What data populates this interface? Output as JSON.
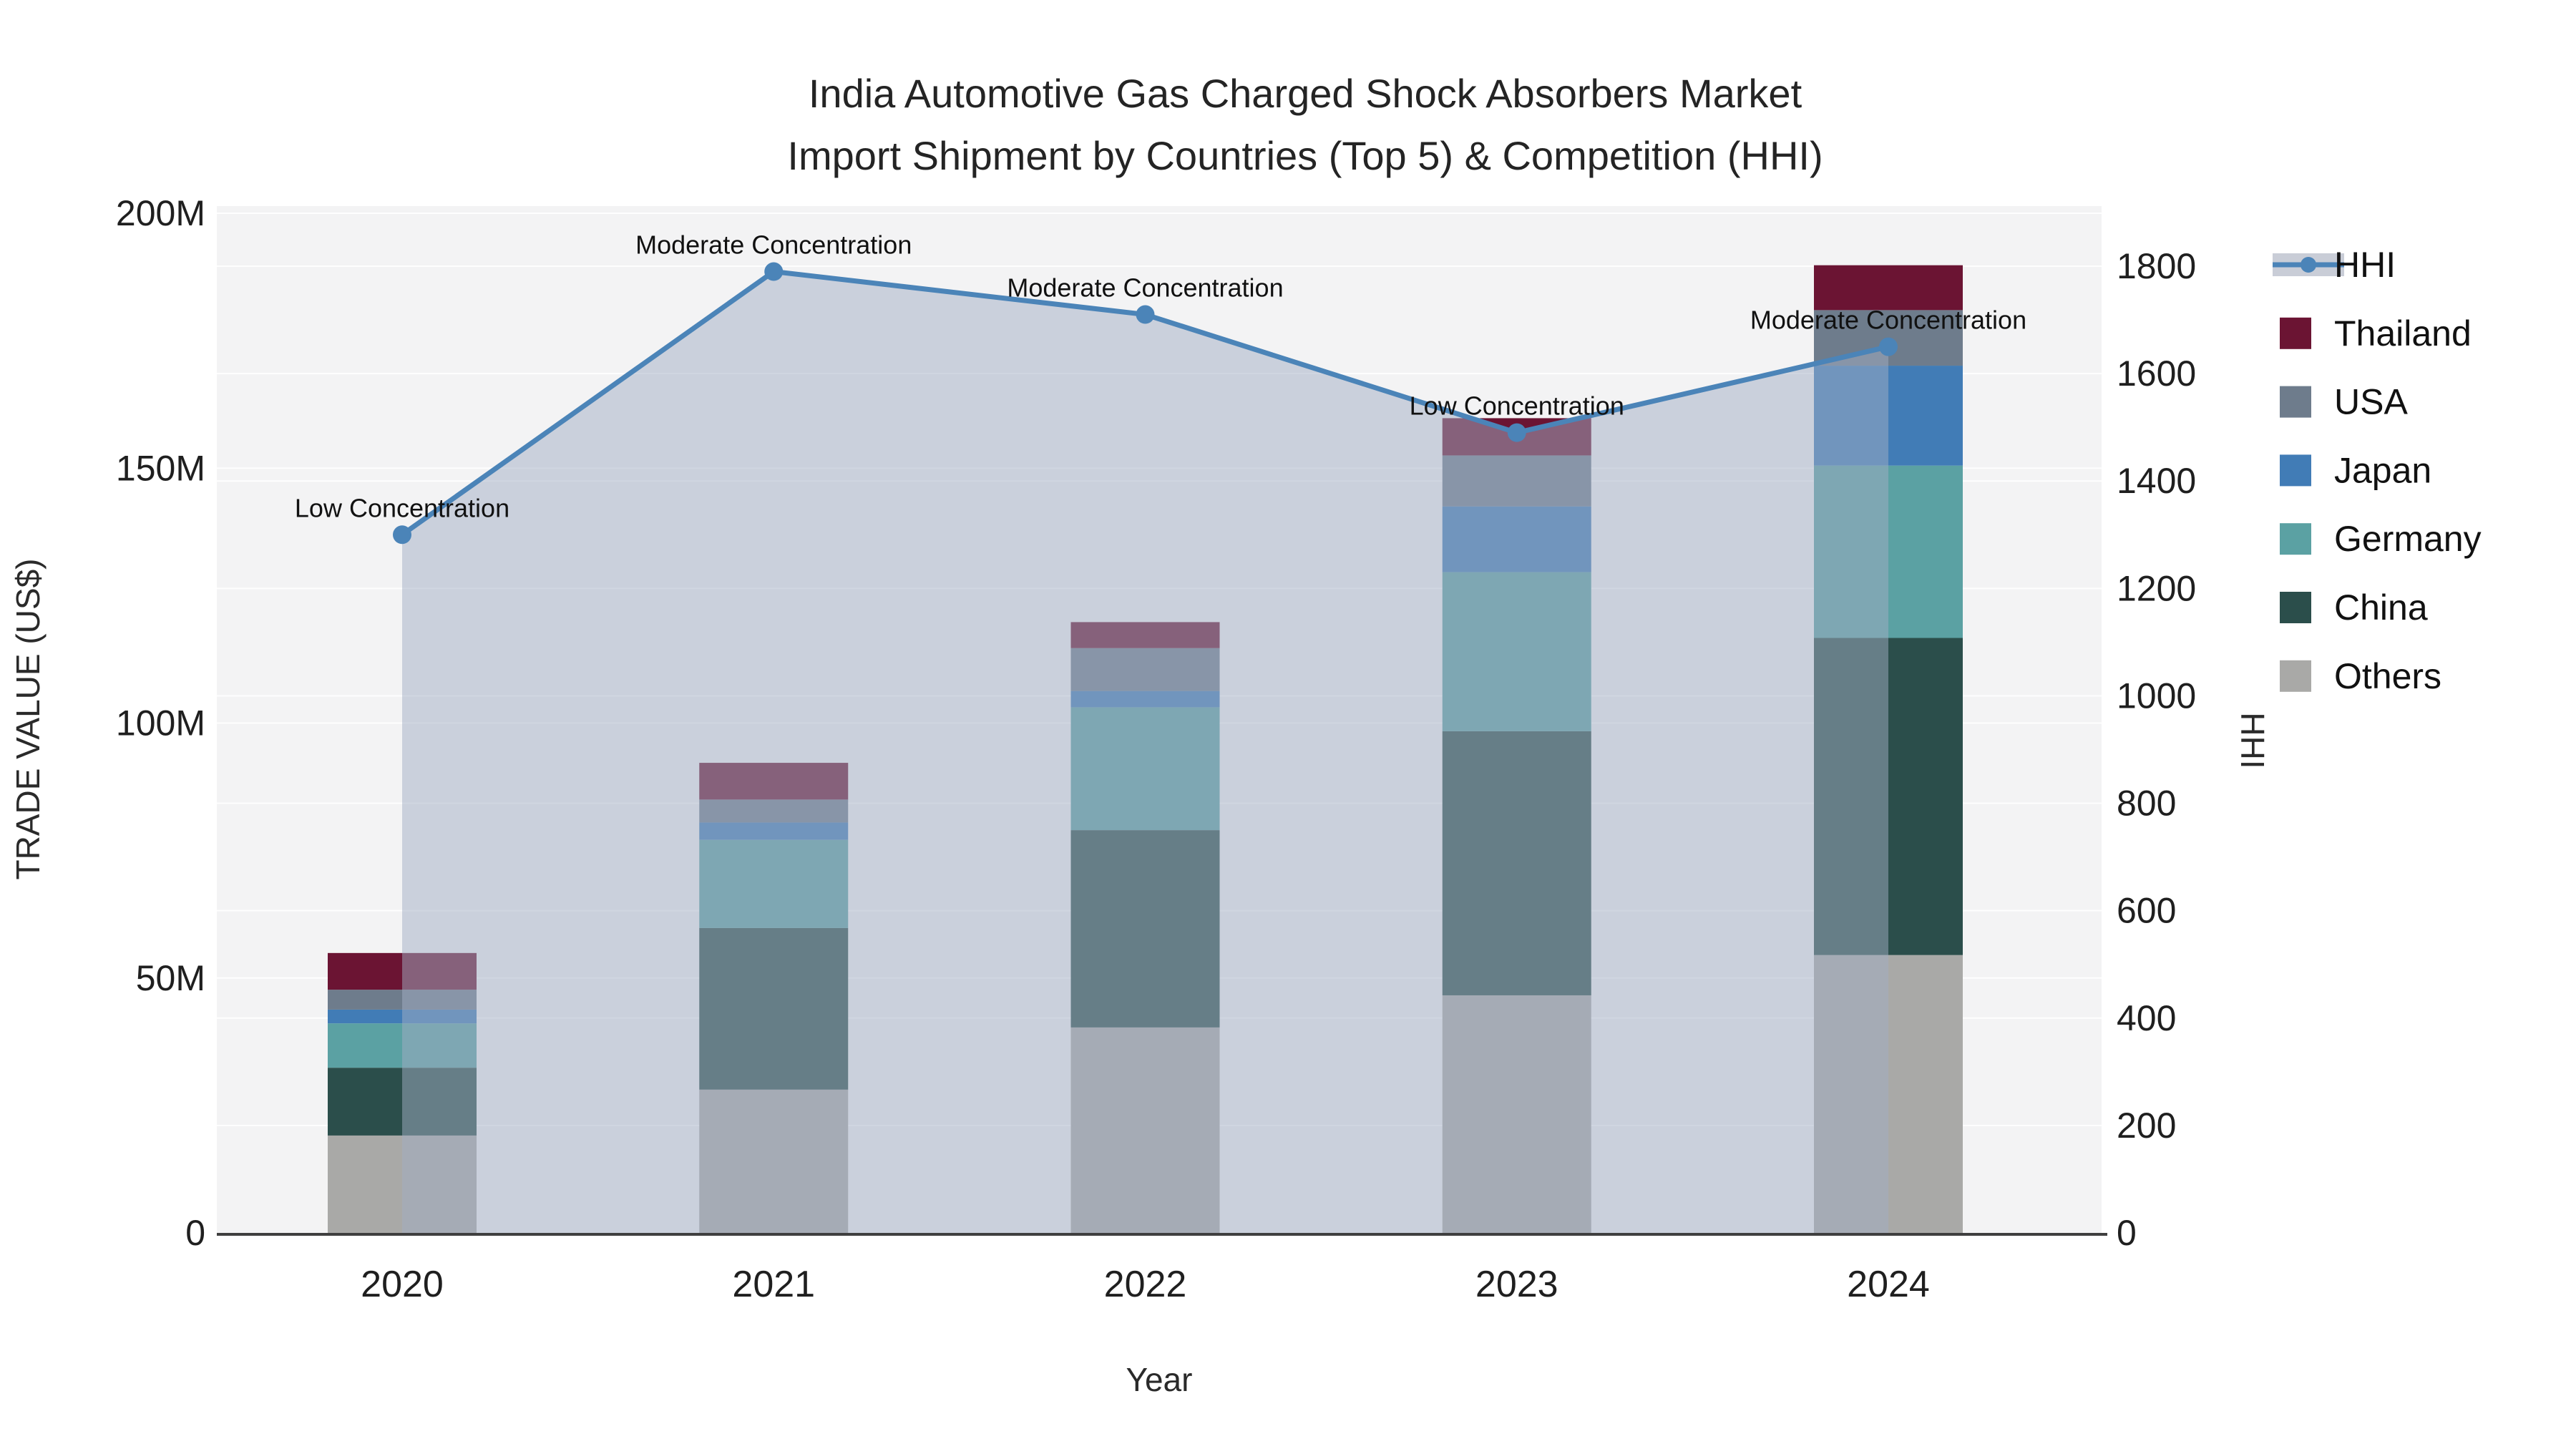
{
  "title": {
    "line1": "India Automotive Gas Charged Shock Absorbers Market",
    "line2": "Import Shipment by Countries (Top 5) & Competition (HHI)"
  },
  "chart_data": {
    "type": "combo: stacked bar + line (dual y-axis)",
    "categories": [
      "2020",
      "2021",
      "2022",
      "2023",
      "2024"
    ],
    "bar_value_unit": "US$ millions",
    "stack_order_bottom_to_top": [
      "Others",
      "China",
      "Germany",
      "Japan",
      "USA",
      "Thailand"
    ],
    "series": [
      {
        "name": "Others",
        "color": "#a9a9a7",
        "values": [
          19.1,
          28.1,
          40.3,
          46.6,
          54.5
        ]
      },
      {
        "name": "China",
        "color": "#2b4e4b",
        "values": [
          13.3,
          31.7,
          38.7,
          51.8,
          62.2
        ]
      },
      {
        "name": "Germany",
        "color": "#5ba1a3",
        "values": [
          8.7,
          17.3,
          24.1,
          31.2,
          33.8
        ]
      },
      {
        "name": "Japan",
        "color": "#417cb6",
        "values": [
          2.7,
          3.4,
          3.2,
          12.9,
          19.6
        ]
      },
      {
        "name": "USA",
        "color": "#6e7c8c",
        "values": [
          3.9,
          4.5,
          8.4,
          10.0,
          10.9
        ]
      },
      {
        "name": "Thailand",
        "color": "#6b1433",
        "values": [
          7.2,
          7.2,
          5.1,
          7.3,
          8.8
        ]
      }
    ],
    "bar_totals": [
      54.9,
      92.2,
      119.8,
      159.8,
      189.8
    ],
    "line_series": {
      "name": "HHI",
      "color": "#4b84b8",
      "area_fill_color": "rgba(162,174,196,0.5)",
      "values": [
        1300,
        1790,
        1710,
        1490,
        1650
      ]
    },
    "annotations": [
      "Low Concentration",
      "Moderate Concentration",
      "Moderate Concentration",
      "Low Concentration",
      "Moderate Concentration"
    ],
    "x_label": "Year",
    "y_left": {
      "label": "TRADE VALUE (US$)",
      "ticks": [
        "0",
        "50M",
        "100M",
        "150M",
        "200M"
      ],
      "tick_values": [
        0,
        50,
        100,
        150,
        200
      ],
      "max": 200
    },
    "y_right": {
      "label": "HHI",
      "ticks": [
        "0",
        "200",
        "400",
        "600",
        "800",
        "1000",
        "1200",
        "1400",
        "1600",
        "1800"
      ],
      "tick_values": [
        0,
        200,
        400,
        600,
        800,
        1000,
        1200,
        1400,
        1600,
        1800
      ],
      "max": 1800
    },
    "legend_order": [
      "HHI",
      "Thailand",
      "USA",
      "Japan",
      "Germany",
      "China",
      "Others"
    ],
    "grid": "on",
    "legend_position": "right",
    "plot_background": "#f3f3f4"
  },
  "colors": {
    "hhi_line": "#4b84b8",
    "hhi_area": "rgba(162,174,196,0.5)",
    "thailand": "#6b1433",
    "usa": "#6e7c8c",
    "japan": "#417cb6",
    "germany": "#5ba1a3",
    "china": "#2b4e4b",
    "others": "#a9a9a7",
    "plot_bg": "#f3f3f4",
    "gridline": "rgba(255,255,255,0.9)",
    "axis_line": "#3f3f3f"
  }
}
